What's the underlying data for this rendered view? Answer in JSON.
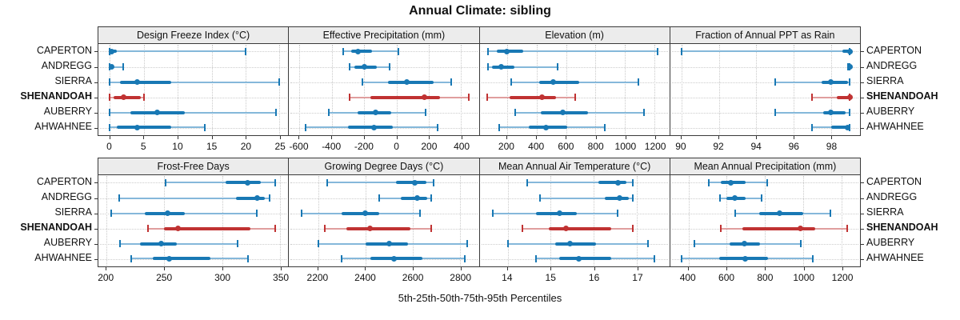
{
  "title": "Annual Climate: sibling",
  "footer": "5th-25th-50th-75th-95th Percentiles",
  "colors": {
    "normal": "#1878b4",
    "normal_light": "#85b8da",
    "highlight": "#c03232",
    "highlight_light": "#e09e9e",
    "grid": "#c9c9c9",
    "header_bg": "#ececec",
    "border": "#3a3a3a"
  },
  "sites": [
    {
      "label": "CAPERTON",
      "highlight": false
    },
    {
      "label": "ANDREGG",
      "highlight": false
    },
    {
      "label": "SIERRA",
      "highlight": false
    },
    {
      "label": "SHENANDOAH",
      "highlight": true
    },
    {
      "label": "AUBERRY",
      "highlight": false
    },
    {
      "label": "AHWAHNEE",
      "highlight": false
    }
  ],
  "chart_data": [
    {
      "type": "dotplot-percentile",
      "panel": "Design Freeze Index (°C)",
      "grid_row": 1,
      "ticks": [
        0,
        5,
        10,
        15,
        20,
        25
      ],
      "xlim": [
        -1.7,
        26.3
      ],
      "percentile_labels": [
        "p5",
        "p25",
        "p50",
        "p75",
        "p95"
      ],
      "series": [
        {
          "site": "CAPERTON",
          "values": [
            0,
            0,
            0.3,
            1,
            20
          ]
        },
        {
          "site": "ANDREGG",
          "values": [
            0,
            0,
            0.2,
            0.6,
            2
          ]
        },
        {
          "site": "SIERRA",
          "values": [
            0,
            1.5,
            4,
            9,
            25
          ]
        },
        {
          "site": "SHENANDOAH",
          "values": [
            0,
            0.5,
            2,
            4.5,
            5
          ]
        },
        {
          "site": "AUBERRY",
          "values": [
            0,
            3,
            7,
            11,
            24.5
          ]
        },
        {
          "site": "AHWAHNEE",
          "values": [
            0,
            1,
            4,
            9,
            14
          ]
        }
      ]
    },
    {
      "type": "dotplot-percentile",
      "panel": "Effective Precipitation (mm)",
      "grid_row": 1,
      "ticks": [
        -600,
        -400,
        -200,
        0,
        200,
        400
      ],
      "xlim": [
        -665,
        510
      ],
      "percentile_labels": [
        "p5",
        "p25",
        "p50",
        "p75",
        "p95"
      ],
      "series": [
        {
          "site": "CAPERTON",
          "values": [
            -330,
            -280,
            -240,
            -150,
            10
          ]
        },
        {
          "site": "ANDREGG",
          "values": [
            -290,
            -260,
            -200,
            -120,
            -40
          ]
        },
        {
          "site": "SIERRA",
          "values": [
            -210,
            -50,
            65,
            230,
            340
          ]
        },
        {
          "site": "SHENANDOAH",
          "values": [
            -290,
            -160,
            175,
            270,
            450
          ]
        },
        {
          "site": "AUBERRY",
          "values": [
            -420,
            -240,
            -130,
            -30,
            180
          ]
        },
        {
          "site": "AHWAHNEE",
          "values": [
            -560,
            -300,
            -140,
            -20,
            255
          ]
        }
      ]
    },
    {
      "type": "dotplot-percentile",
      "panel": "Elevation (m)",
      "grid_row": 1,
      "ticks": [
        200,
        400,
        600,
        800,
        1000,
        1200
      ],
      "xlim": [
        15,
        1300
      ],
      "percentile_labels": [
        "p5",
        "p25",
        "p50",
        "p75",
        "p95"
      ],
      "series": [
        {
          "site": "CAPERTON",
          "values": [
            70,
            130,
            200,
            310,
            1220
          ]
        },
        {
          "site": "ANDREGG",
          "values": [
            70,
            100,
            160,
            250,
            545
          ]
        },
        {
          "site": "SIERRA",
          "values": [
            230,
            420,
            515,
            690,
            1090
          ]
        },
        {
          "site": "SHENANDOAH",
          "values": [
            65,
            220,
            440,
            530,
            660
          ]
        },
        {
          "site": "AUBERRY",
          "values": [
            255,
            430,
            580,
            750,
            1130
          ]
        },
        {
          "site": "AHWAHNEE",
          "values": [
            145,
            350,
            465,
            610,
            860
          ]
        }
      ]
    },
    {
      "type": "dotplot-percentile",
      "panel": "Fraction of Annual PPT as Rain",
      "grid_row": 1,
      "ticks": [
        90,
        92,
        94,
        96,
        98
      ],
      "xlim": [
        89.4,
        99.55
      ],
      "percentile_labels": [
        "p5",
        "p25",
        "p50",
        "p75",
        "p95"
      ],
      "series": [
        {
          "site": "CAPERTON",
          "values": [
            90,
            98.6,
            99,
            99,
            99
          ]
        },
        {
          "site": "ANDREGG",
          "values": [
            98.9,
            99,
            99,
            99,
            99
          ]
        },
        {
          "site": "SIERRA",
          "values": [
            95,
            97.5,
            98,
            98.9,
            99
          ]
        },
        {
          "site": "SHENANDOAH",
          "values": [
            97,
            98.3,
            99,
            99,
            99
          ]
        },
        {
          "site": "AUBERRY",
          "values": [
            95,
            97.6,
            98,
            98.8,
            99
          ]
        },
        {
          "site": "AHWAHNEE",
          "values": [
            97,
            98,
            98.9,
            99,
            99
          ]
        }
      ]
    },
    {
      "type": "dotplot-percentile",
      "panel": "Frost-Free Days",
      "grid_row": 2,
      "ticks": [
        200,
        250,
        300,
        350
      ],
      "xlim": [
        193,
        357
      ],
      "percentile_labels": [
        "p5",
        "p25",
        "p50",
        "p75",
        "p95"
      ],
      "series": [
        {
          "site": "CAPERTON",
          "values": [
            251,
            303,
            322,
            333,
            346
          ]
        },
        {
          "site": "ANDREGG",
          "values": [
            211,
            312,
            330,
            337,
            341
          ]
        },
        {
          "site": "SIERRA",
          "values": [
            204,
            233,
            253,
            268,
            330
          ]
        },
        {
          "site": "SHENANDOAH",
          "values": [
            236,
            250,
            262,
            324,
            346
          ]
        },
        {
          "site": "AUBERRY",
          "values": [
            212,
            229,
            247,
            261,
            313
          ]
        },
        {
          "site": "AHWAHNEE",
          "values": [
            221,
            240,
            254,
            290,
            322
          ]
        }
      ]
    },
    {
      "type": "dotplot-percentile",
      "panel": "Growing Degree Days (°C)",
      "grid_row": 2,
      "ticks": [
        2200,
        2400,
        2600,
        2800
      ],
      "xlim": [
        2077,
        2880
      ],
      "percentile_labels": [
        "p5",
        "p25",
        "p50",
        "p75",
        "p95"
      ],
      "series": [
        {
          "site": "CAPERTON",
          "values": [
            2240,
            2530,
            2610,
            2660,
            2690
          ]
        },
        {
          "site": "ANDREGG",
          "values": [
            2460,
            2550,
            2620,
            2660,
            2680
          ]
        },
        {
          "site": "SIERRA",
          "values": [
            2130,
            2300,
            2400,
            2460,
            2630
          ]
        },
        {
          "site": "SHENANDOAH",
          "values": [
            2230,
            2320,
            2420,
            2590,
            2680
          ]
        },
        {
          "site": "AUBERRY",
          "values": [
            2200,
            2400,
            2500,
            2580,
            2830
          ]
        },
        {
          "site": "AHWAHNEE",
          "values": [
            2300,
            2420,
            2520,
            2640,
            2820
          ]
        }
      ]
    },
    {
      "type": "dotplot-percentile",
      "panel": "Mean Annual Air Temperature (°C)",
      "grid_row": 2,
      "ticks": [
        14,
        15,
        16,
        17
      ],
      "xlim": [
        13.35,
        17.75
      ],
      "percentile_labels": [
        "p5",
        "p25",
        "p50",
        "p75",
        "p95"
      ],
      "series": [
        {
          "site": "CAPERTON",
          "values": [
            14.45,
            16.1,
            16.55,
            16.75,
            16.9
          ]
        },
        {
          "site": "ANDREGG",
          "values": [
            14.75,
            16.25,
            16.6,
            16.8,
            16.9
          ]
        },
        {
          "site": "SIERRA",
          "values": [
            13.65,
            14.65,
            15.2,
            15.6,
            16.55
          ]
        },
        {
          "site": "SHENANDOAH",
          "values": [
            14.35,
            14.95,
            15.35,
            16.4,
            16.9
          ]
        },
        {
          "site": "AUBERRY",
          "values": [
            14.0,
            15.1,
            15.45,
            16.05,
            17.25
          ]
        },
        {
          "site": "AHWAHNEE",
          "values": [
            14.65,
            15.2,
            15.65,
            16.4,
            17.4
          ]
        }
      ]
    },
    {
      "type": "dotplot-percentile",
      "panel": "Mean Annual Precipitation (mm)",
      "grid_row": 2,
      "ticks": [
        400,
        600,
        800,
        1000,
        1200
      ],
      "xlim": [
        305,
        1295
      ],
      "percentile_labels": [
        "p5",
        "p25",
        "p50",
        "p75",
        "p95"
      ],
      "series": [
        {
          "site": "CAPERTON",
          "values": [
            505,
            570,
            620,
            700,
            810
          ]
        },
        {
          "site": "ANDREGG",
          "values": [
            565,
            600,
            640,
            700,
            780
          ]
        },
        {
          "site": "SIERRA",
          "values": [
            645,
            770,
            875,
            1000,
            1140
          ]
        },
        {
          "site": "SHENANDOAH",
          "values": [
            570,
            680,
            985,
            1060,
            1230
          ]
        },
        {
          "site": "AUBERRY",
          "values": [
            430,
            615,
            690,
            775,
            985
          ]
        },
        {
          "site": "AHWAHNEE",
          "values": [
            365,
            560,
            695,
            815,
            1050
          ]
        }
      ]
    }
  ]
}
